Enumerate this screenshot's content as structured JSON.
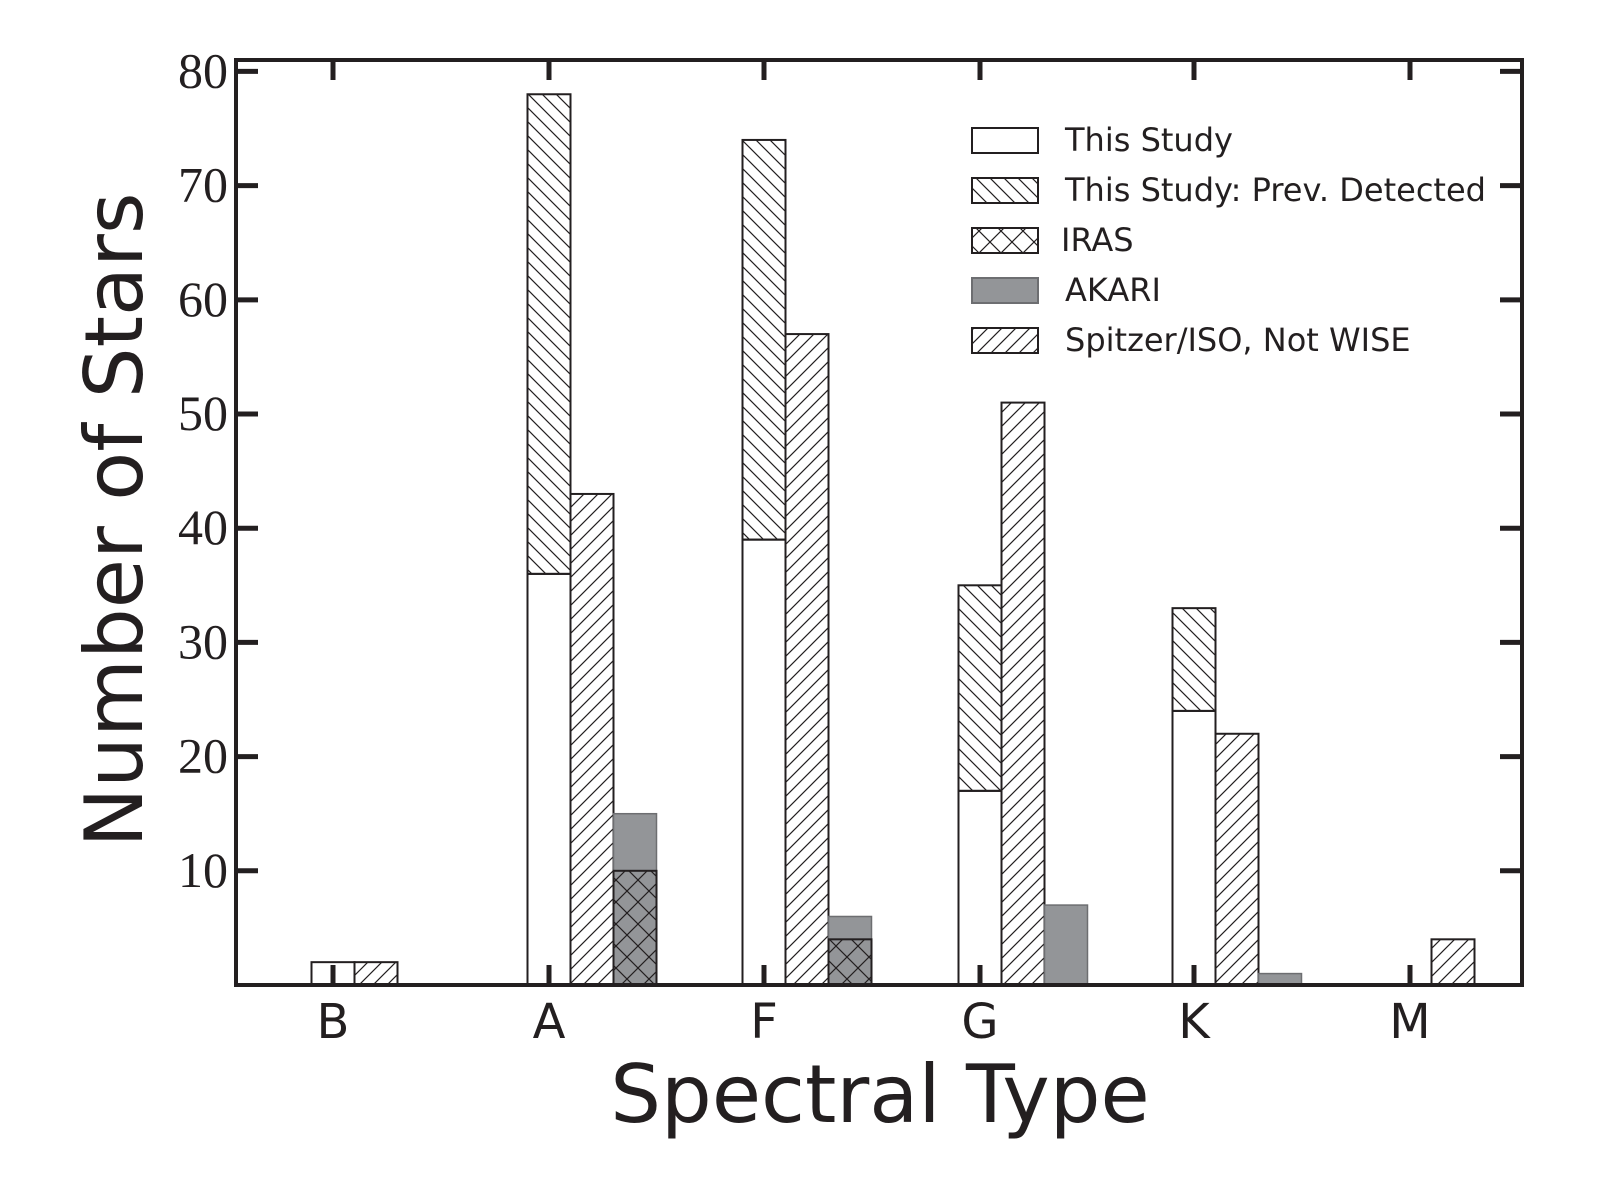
{
  "chart_data": {
    "type": "bar",
    "categories": [
      "B",
      "A",
      "F",
      "G",
      "K",
      "M"
    ],
    "xlabel": "Spectral Type",
    "ylabel": "Number of Stars",
    "ylim": [
      0,
      81
    ],
    "yticks": [
      10,
      20,
      30,
      40,
      50,
      60,
      70,
      80
    ],
    "grid": false,
    "legend_position": "top-right",
    "series": [
      {
        "name": "This Study",
        "values": [
          2,
          36,
          39,
          17,
          24,
          0
        ],
        "pattern": "none",
        "group": 0,
        "stack_base": true
      },
      {
        "name": "This Study: Prev. Detected",
        "values": [
          0,
          42,
          35,
          18,
          9,
          0
        ],
        "pattern": "backslash",
        "group": 0,
        "stack_on": "This Study"
      },
      {
        "name": "Spitzer/ISO, Not WISE",
        "values": [
          2,
          43,
          57,
          51,
          22,
          4
        ],
        "pattern": "slash",
        "group": 1
      },
      {
        "name": "AKARI",
        "values": [
          0,
          15,
          6,
          7,
          1,
          0
        ],
        "pattern": "gray",
        "group": 2
      },
      {
        "name": "IRAS",
        "values": [
          0,
          10,
          4,
          0,
          0,
          0
        ],
        "pattern": "cross",
        "group": 2
      }
    ],
    "legend_order": [
      "This Study",
      "This Study: Prev. Detected",
      "IRAS",
      "AKARI",
      "Spitzer/ISO, Not WISE"
    ]
  }
}
